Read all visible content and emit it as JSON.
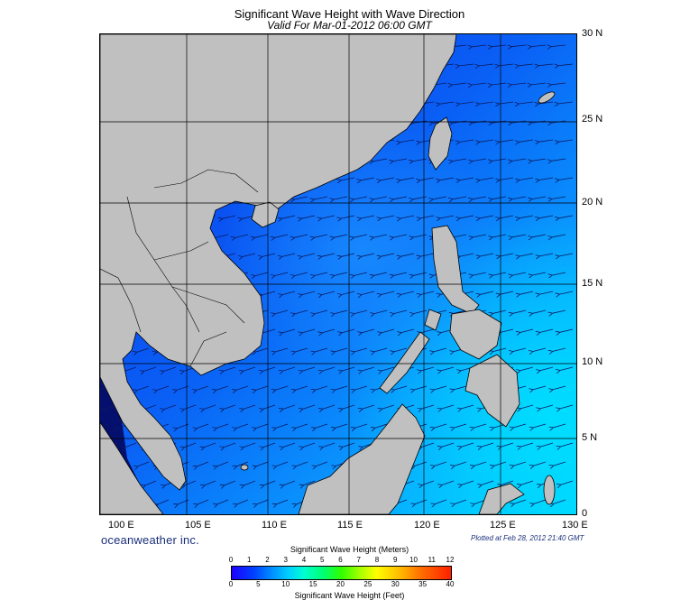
{
  "title": "Significant Wave Height with Wave Direction",
  "subtitle": "Valid For Mar-01-2012 06:00 GMT",
  "lat_labels": [
    "30 N",
    "25 N",
    "20 N",
    "15 N",
    "10 N",
    "5 N",
    "0"
  ],
  "lon_labels": [
    "100 E",
    "105 E",
    "110 E",
    "115 E",
    "120 E",
    "125 E",
    "130 E"
  ],
  "brand": "oceanweather inc.",
  "plotted": "Plotted at Feb 28, 2012 21:40 GMT",
  "colorbar": {
    "title_meters": "Significant Wave Height (Meters)",
    "title_feet": "Significant Wave Height (Feet)",
    "meters_ticks": [
      "0",
      "1",
      "2",
      "3",
      "4",
      "5",
      "6",
      "7",
      "8",
      "9",
      "10",
      "11",
      "12"
    ],
    "feet_ticks": [
      "0",
      "5",
      "10",
      "15",
      "20",
      "25",
      "30",
      "35",
      "40"
    ]
  },
  "colors": {
    "land": "#c0c0c0",
    "sea_low": "#0b2ff0",
    "sea_mid": "#0a7cff",
    "sea_high": "#00d8ff",
    "arrow": "#0a1a60"
  }
}
